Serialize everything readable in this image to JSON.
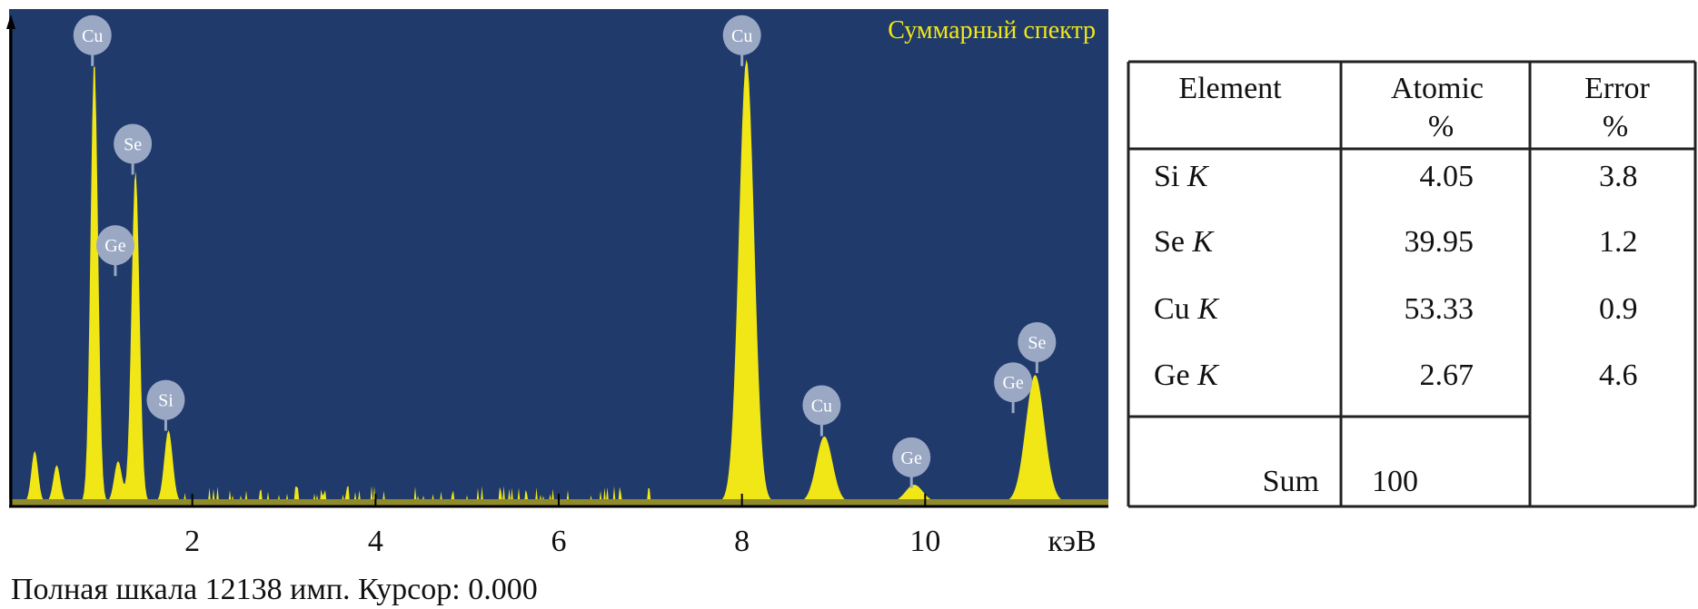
{
  "chart_data": {
    "type": "area",
    "title": "Суммарный спектр",
    "xlabel": "кэВ",
    "ylabel": "",
    "xlim": [
      0,
      12
    ],
    "ylim": [
      0,
      12138
    ],
    "x_ticks": [
      2,
      4,
      6,
      8,
      10
    ],
    "x_tick_labels": [
      "2",
      "4",
      "6",
      "8",
      "10"
    ],
    "grid": false,
    "colors": {
      "background": "#1f3a6b",
      "spectrum": "#f2e716",
      "label_bubble": "#9aa8c4"
    },
    "peaks": [
      {
        "energy": 0.28,
        "counts": 1250
      },
      {
        "energy": 0.52,
        "counts": 900
      },
      {
        "energy": 0.93,
        "counts": 10800
      },
      {
        "energy": 1.19,
        "counts": 1000
      },
      {
        "energy": 1.38,
        "counts": 8100
      },
      {
        "energy": 1.74,
        "counts": 1750
      },
      {
        "energy": 8.05,
        "counts": 10800
      },
      {
        "energy": 8.9,
        "counts": 1600
      },
      {
        "energy": 9.88,
        "counts": 420
      },
      {
        "energy": 11.2,
        "counts": 3100
      }
    ],
    "baseline_counts": 110,
    "annotations": [
      {
        "label": "Cu",
        "energy": 0.91,
        "counts": 11500
      },
      {
        "label": "Se",
        "energy": 1.35,
        "counts": 8850
      },
      {
        "label": "Ge",
        "energy": 1.16,
        "counts": 6375
      },
      {
        "label": "Si",
        "energy": 1.71,
        "counts": 2600
      },
      {
        "label": "Cu",
        "energy": 8.0,
        "counts": 11500
      },
      {
        "label": "Cu",
        "energy": 8.87,
        "counts": 2470
      },
      {
        "label": "Ge",
        "energy": 9.85,
        "counts": 1200
      },
      {
        "label": "Se",
        "energy": 11.22,
        "counts": 4010
      },
      {
        "label": "Ge",
        "energy": 10.96,
        "counts": 3030
      }
    ]
  },
  "caption": "Полная шкала 12138 имп. Курсор: 0.000",
  "table": {
    "headers": [
      {
        "line1": "Element",
        "line2": ""
      },
      {
        "line1": "Atomic",
        "line2": "%"
      },
      {
        "line1": "Error",
        "line2": "%"
      }
    ],
    "rows": [
      {
        "element": "Si",
        "line": "K",
        "atomic": "4.05",
        "error": "3.8"
      },
      {
        "element": "Se",
        "line": "K",
        "atomic": "39.95",
        "error": "1.2"
      },
      {
        "element": "Cu",
        "line": "K",
        "atomic": "53.33",
        "error": "0.9"
      },
      {
        "element": "Ge",
        "line": "K",
        "atomic": "2.67",
        "error": "4.6"
      }
    ],
    "sum_label": "Sum",
    "sum_value": "100"
  }
}
